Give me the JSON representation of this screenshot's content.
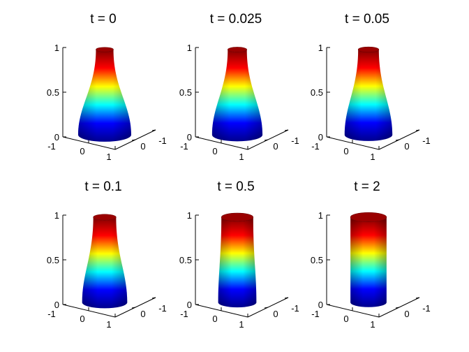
{
  "figure": {
    "panels": [
      {
        "title": "t = 0",
        "bottom_radius": 1.0,
        "top_radius": 0.33
      },
      {
        "title": "t = 0.025",
        "bottom_radius": 0.95,
        "top_radius": 0.36
      },
      {
        "title": "t = 0.05",
        "bottom_radius": 0.9,
        "top_radius": 0.39
      },
      {
        "title": "t = 0.1",
        "bottom_radius": 0.85,
        "top_radius": 0.43
      },
      {
        "title": "t = 0.5",
        "bottom_radius": 0.72,
        "top_radius": 0.6
      },
      {
        "title": "t = 2",
        "bottom_radius": 0.68,
        "top_radius": 0.68
      }
    ],
    "z_ticks": [
      "0",
      "0.5",
      "1"
    ],
    "x_ticks": [
      "-1",
      "0",
      "1"
    ],
    "y_ticks": [
      "0",
      "-1"
    ],
    "colormap": [
      "#00008f",
      "#0000ff",
      "#00ffff",
      "#ffff00",
      "#ff0000",
      "#800000"
    ]
  }
}
